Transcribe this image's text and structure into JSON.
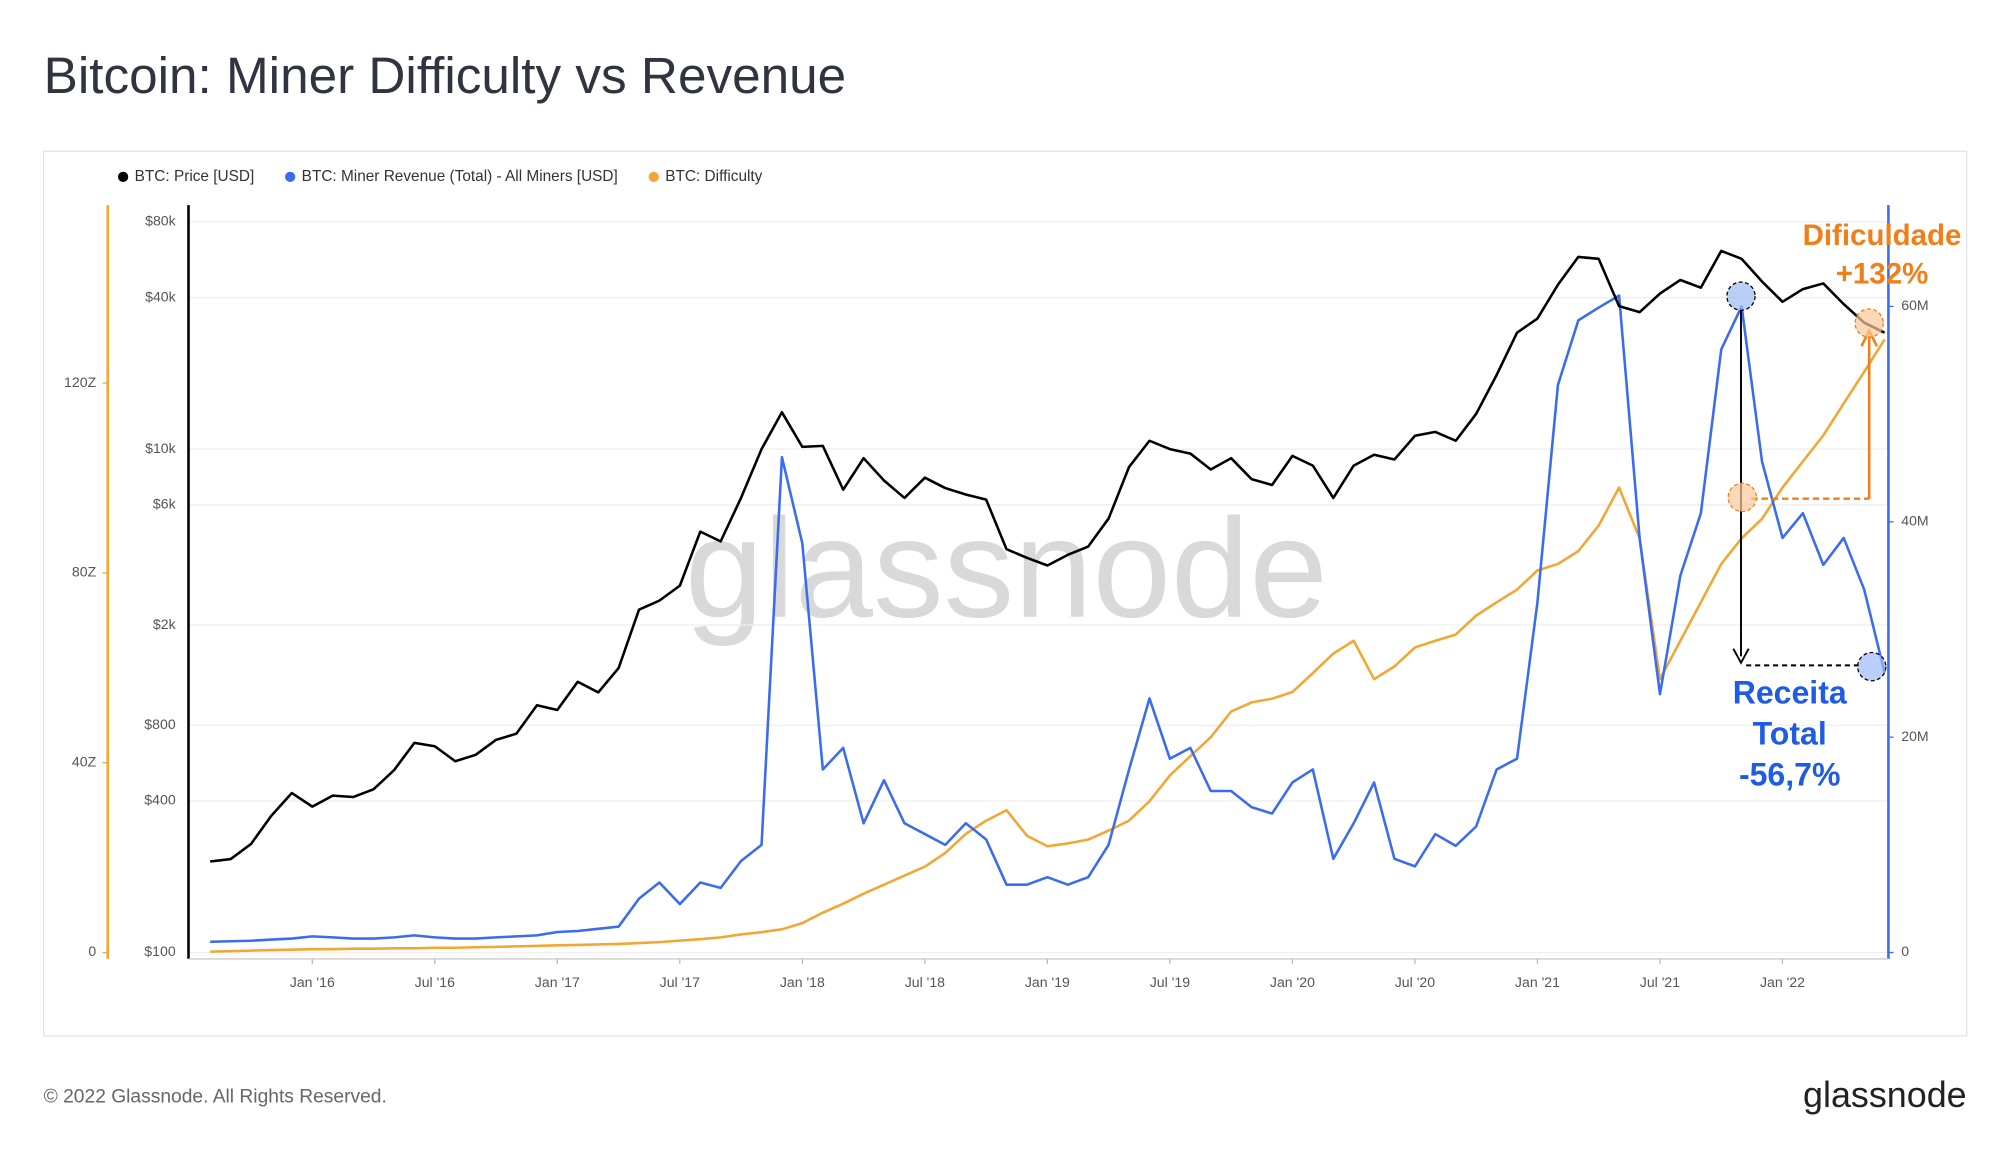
{
  "chart_data": {
    "type": "line",
    "title": "Bitcoin: Miner Difficulty vs Revenue",
    "watermark": "glassnode",
    "x": [
      "2015-08",
      "2015-09",
      "2015-10",
      "2015-11",
      "2015-12",
      "2016-01",
      "2016-02",
      "2016-03",
      "2016-04",
      "2016-05",
      "2016-06",
      "2016-07",
      "2016-08",
      "2016-09",
      "2016-10",
      "2016-11",
      "2016-12",
      "2017-01",
      "2017-02",
      "2017-03",
      "2017-04",
      "2017-05",
      "2017-06",
      "2017-07",
      "2017-08",
      "2017-09",
      "2017-10",
      "2017-11",
      "2017-12",
      "2018-01",
      "2018-02",
      "2018-03",
      "2018-04",
      "2018-05",
      "2018-06",
      "2018-07",
      "2018-08",
      "2018-09",
      "2018-10",
      "2018-11",
      "2018-12",
      "2019-01",
      "2019-02",
      "2019-03",
      "2019-04",
      "2019-05",
      "2019-06",
      "2019-07",
      "2019-08",
      "2019-09",
      "2019-10",
      "2019-11",
      "2019-12",
      "2020-01",
      "2020-02",
      "2020-03",
      "2020-04",
      "2020-05",
      "2020-06",
      "2020-07",
      "2020-08",
      "2020-09",
      "2020-10",
      "2020-11",
      "2020-12",
      "2021-01",
      "2021-02",
      "2021-03",
      "2021-04",
      "2021-05",
      "2021-06",
      "2021-07",
      "2021-08",
      "2021-09",
      "2021-10",
      "2021-11",
      "2021-12",
      "2022-01",
      "2022-02",
      "2022-03",
      "2022-04",
      "2022-05",
      "2022-06"
    ],
    "xlim": [
      "2015-07",
      "2022-06"
    ],
    "xticks": [
      {
        "value": "2016-01",
        "label": "Jan '16"
      },
      {
        "value": "2016-07",
        "label": "Jul '16"
      },
      {
        "value": "2017-01",
        "label": "Jan '17"
      },
      {
        "value": "2017-07",
        "label": "Jul '17"
      },
      {
        "value": "2018-01",
        "label": "Jan '18"
      },
      {
        "value": "2018-07",
        "label": "Jul '18"
      },
      {
        "value": "2019-01",
        "label": "Jan '19"
      },
      {
        "value": "2019-07",
        "label": "Jul '19"
      },
      {
        "value": "2020-01",
        "label": "Jan '20"
      },
      {
        "value": "2020-07",
        "label": "Jul '20"
      },
      {
        "value": "2021-01",
        "label": "Jan '21"
      },
      {
        "value": "2021-07",
        "label": "Jul '21"
      },
      {
        "value": "2022-01",
        "label": "Jan '22"
      }
    ],
    "yscale": "log",
    "ylim": [
      100,
      80000
    ],
    "yticks": [
      {
        "value": 100,
        "label": "$100"
      },
      {
        "value": 400,
        "label": "$400"
      },
      {
        "value": 800,
        "label": "$800"
      },
      {
        "value": 2000,
        "label": "$2k"
      },
      {
        "value": 6000,
        "label": "$6k"
      },
      {
        "value": 10000,
        "label": "$10k"
      },
      {
        "value": 40000,
        "label": "$40k"
      },
      {
        "value": 80000,
        "label": "$80k"
      }
    ],
    "y2lim": [
      0,
      67860000
    ],
    "y2ticks": [
      0,
      {
        "value": 20000000,
        "label": "20M"
      },
      {
        "value": 40000000,
        "label": "40M"
      },
      {
        "value": 60000000,
        "label": "60M"
      }
    ],
    "y3lim": [
      0,
      154
    ],
    "y3ticks": [
      0,
      {
        "value": 40,
        "label": "40Z"
      },
      {
        "value": 80,
        "label": "80Z"
      },
      {
        "value": 120,
        "label": "120Z"
      }
    ],
    "grid": true,
    "series": [
      {
        "name": "BTC: Price [USD]",
        "color": "#000000",
        "axis": "y",
        "values": [
          230,
          235,
          270,
          350,
          430,
          380,
          420,
          415,
          445,
          530,
          680,
          660,
          575,
          610,
          700,
          740,
          960,
          920,
          1190,
          1080,
          1350,
          2300,
          2500,
          2870,
          4700,
          4300,
          6400,
          10000,
          14000,
          10200,
          10300,
          6900,
          9200,
          7500,
          6400,
          7700,
          7000,
          6600,
          6300,
          4000,
          3700,
          3450,
          3800,
          4100,
          5300,
          8500,
          10800,
          10000,
          9600,
          8300,
          9200,
          7600,
          7200,
          9400,
          8600,
          6400,
          8600,
          9500,
          9100,
          11300,
          11700,
          10800,
          13800,
          19700,
          29000,
          33000,
          45000,
          58000,
          57000,
          37000,
          35000,
          41500,
          47000,
          43800,
          61300,
          57000,
          46300,
          38500,
          43200,
          45500,
          37700,
          31800,
          29000
        ]
      },
      {
        "name": "BTC: Miner Revenue (Total) - All Miners [USD]",
        "color": "#3b6cf0",
        "axis": "y2",
        "values": [
          1000000,
          1050000,
          1100000,
          1200000,
          1300000,
          1500000,
          1400000,
          1300000,
          1300000,
          1400000,
          1600000,
          1400000,
          1300000,
          1300000,
          1400000,
          1500000,
          1600000,
          1900000,
          2000000,
          2200000,
          2400000,
          5000000,
          6500000,
          4500000,
          6500000,
          6000000,
          8500000,
          10000000,
          46000000,
          38000000,
          17000000,
          19000000,
          12000000,
          16000000,
          12000000,
          11000000,
          10000000,
          12000000,
          10500000,
          6300000,
          6300000,
          7000000,
          6300000,
          7000000,
          10000000,
          17000000,
          23600000,
          18000000,
          19000000,
          15000000,
          15000000,
          13500000,
          12900000,
          15800000,
          17000000,
          8700000,
          12000000,
          15800000,
          8700000,
          8000000,
          11000000,
          9900000,
          11700000,
          17000000,
          18000000,
          32500000,
          52700000,
          58700000,
          59900000,
          61000000,
          38500000,
          24000000,
          35000000,
          40800000,
          56000000,
          60000000,
          45600000,
          38500000,
          40800000,
          36000000,
          38500000,
          33700000,
          26000000
        ]
      },
      {
        "name": "BTC: Difficulty",
        "color": "#f2a634",
        "axis": "y3",
        "values": [
          0.2,
          0.3,
          0.4,
          0.5,
          0.6,
          0.7,
          0.7,
          0.8,
          0.8,
          0.9,
          0.9,
          1,
          1,
          1.1,
          1.2,
          1.3,
          1.4,
          1.5,
          1.6,
          1.7,
          1.8,
          2,
          2.2,
          2.5,
          2.8,
          3.2,
          3.8,
          4.3,
          4.9,
          6.2,
          8.4,
          10.3,
          12.4,
          14.3,
          16.2,
          18.1,
          21,
          25,
          27.8,
          30,
          24.6,
          22.4,
          23,
          23.8,
          25.7,
          27.8,
          31.9,
          37.3,
          41.4,
          45.4,
          50.8,
          52.7,
          53.5,
          54.9,
          58.9,
          63,
          65.7,
          57.6,
          60.3,
          64.3,
          65.7,
          67,
          71,
          73.8,
          76.5,
          80.5,
          81.9,
          84.6,
          90,
          98,
          87.3,
          57.6,
          65.7,
          73.8,
          81.9,
          87.3,
          91.4,
          98,
          103.5,
          109,
          115.7,
          122.4,
          129.2
        ]
      }
    ],
    "annotations": {
      "difficulty": [
        "Dificuldade",
        "+132%"
      ],
      "revenue": [
        "Receita",
        "Total",
        "-56,7%"
      ]
    }
  },
  "footer": {
    "copyright": "© 2022 Glassnode. All Rights Reserved.",
    "brand": "glassnode"
  }
}
